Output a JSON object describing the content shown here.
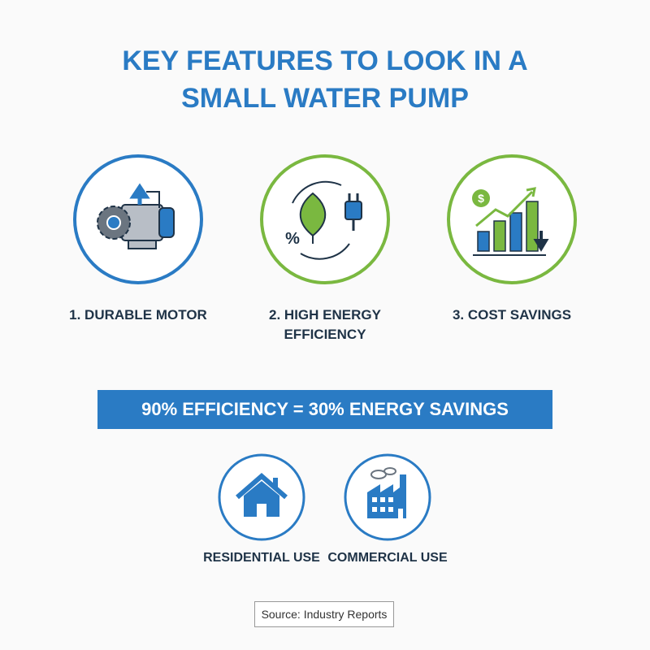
{
  "title": "KEY FEATURES TO LOOK IN A SMALL WATER PUMP",
  "features": [
    {
      "label": "1. DURABLE MOTOR"
    },
    {
      "label": "2. HIGH ENERGY EFFICIENCY",
      "icon_text": "%"
    },
    {
      "label": "3. COST SAVINGS",
      "icon_text": "$"
    }
  ],
  "banner": "90% EFFICIENCY = 30% ENERGY SAVINGS",
  "uses": [
    {
      "label": "RESIDENTIAL USE"
    },
    {
      "label": "COMMERCIAL USE"
    }
  ],
  "source": "Source: Industry Reports"
}
